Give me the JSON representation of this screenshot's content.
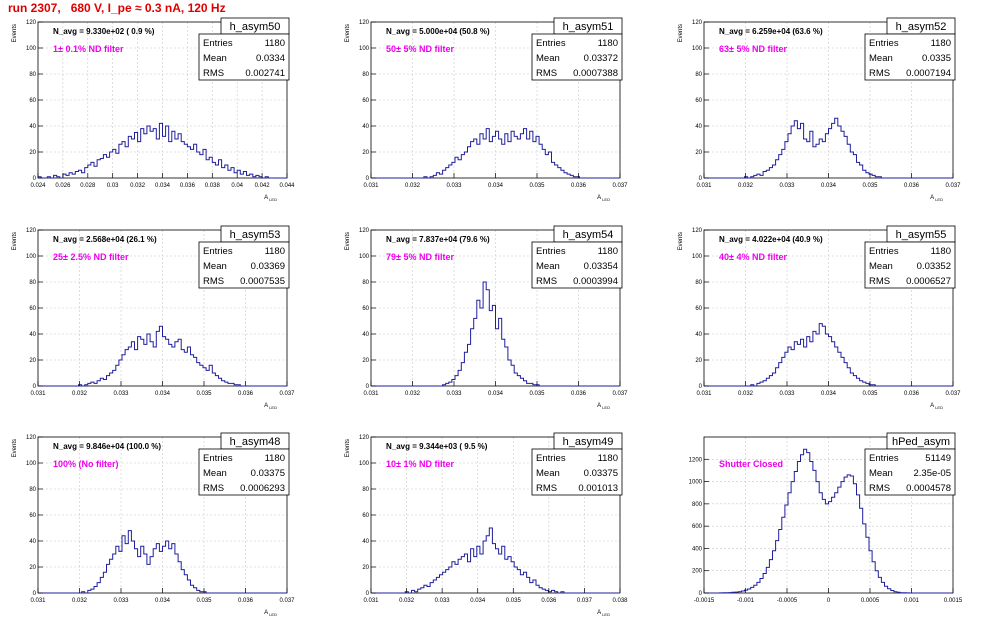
{
  "canvas_title": "run 2307,   680 V, I_pe ≈ 0.3 nA, 120 Hz",
  "colors": {
    "hist": "#1f1f9e",
    "grid": "#c8c8c8",
    "title_red": "#e00000",
    "annot_magenta": "#ee00ee"
  },
  "stats_labels": {
    "entries": "Entries",
    "mean": "Mean",
    "rms": "RMS"
  },
  "chart_data": [
    {
      "type": "histogram",
      "name": "h_asym50",
      "ylabel": "Events",
      "xlabel": "A_LED",
      "nvg": "N_avg = 9.330e+02 ( 0.9 %)",
      "filter": "1± 0.1% ND filter",
      "entries": "1180",
      "mean": "0.0334",
      "rms": "0.002741",
      "xlim": [
        0.024,
        0.044
      ],
      "xticks": [
        0.024,
        0.026,
        0.028,
        0.03,
        0.032,
        0.034,
        0.036,
        0.038,
        0.04,
        0.042,
        0.044
      ],
      "ylim": [
        0,
        120
      ],
      "yticks": [
        0,
        20,
        40,
        60,
        80,
        100,
        120
      ],
      "values": [
        1,
        0,
        0,
        1,
        0,
        2,
        1,
        0,
        3,
        2,
        4,
        3,
        5,
        6,
        4,
        8,
        10,
        12,
        9,
        14,
        15,
        18,
        16,
        20,
        22,
        19,
        26,
        28,
        24,
        32,
        30,
        35,
        28,
        38,
        34,
        40,
        36,
        38,
        30,
        42,
        32,
        40,
        28,
        36,
        30,
        34,
        28,
        26,
        24,
        22,
        26,
        20,
        18,
        22,
        14,
        16,
        12,
        10,
        14,
        8,
        10,
        6,
        8,
        4,
        6,
        3,
        5,
        2,
        3,
        1,
        2,
        1,
        0,
        1,
        0,
        0,
        0,
        0,
        0,
        0
      ]
    },
    {
      "type": "histogram",
      "name": "h_asym51",
      "ylabel": "Events",
      "xlabel": "A_LED",
      "nvg": "N_avg = 5.000e+04 (50.8 %)",
      "filter": "50± 5% ND filter",
      "entries": "1180",
      "mean": "0.03372",
      "rms": "0.0007388",
      "xlim": [
        0.031,
        0.037
      ],
      "xticks": [
        0.031,
        0.032,
        0.033,
        0.034,
        0.035,
        0.036,
        0.037
      ],
      "ylim": [
        0,
        120
      ],
      "yticks": [
        0,
        20,
        40,
        60,
        80,
        100,
        120
      ],
      "values": [
        0,
        0,
        0,
        0,
        0,
        0,
        0,
        0,
        0,
        0,
        0,
        0,
        0,
        0,
        0,
        0,
        0,
        1,
        0,
        1,
        2,
        4,
        3,
        6,
        8,
        10,
        12,
        16,
        14,
        18,
        20,
        24,
        28,
        30,
        26,
        34,
        30,
        38,
        28,
        32,
        36,
        30,
        26,
        34,
        28,
        36,
        32,
        30,
        34,
        38,
        30,
        36,
        28,
        32,
        26,
        22,
        18,
        20,
        12,
        10,
        8,
        6,
        4,
        3,
        2,
        1,
        1,
        0,
        0,
        0,
        0,
        0,
        0,
        0,
        0,
        0,
        0,
        0,
        0,
        0
      ]
    },
    {
      "type": "histogram",
      "name": "h_asym52",
      "ylabel": "Events",
      "xlabel": "A_LED",
      "nvg": "N_avg = 6.259e+04 (63.6 %)",
      "filter": "63± 5% ND filter",
      "entries": "1180",
      "mean": "0.0335",
      "rms": "0.0007194",
      "xlim": [
        0.031,
        0.037
      ],
      "xticks": [
        0.031,
        0.032,
        0.033,
        0.034,
        0.035,
        0.036,
        0.037
      ],
      "ylim": [
        0,
        120
      ],
      "yticks": [
        0,
        20,
        40,
        60,
        80,
        100,
        120
      ],
      "values": [
        0,
        0,
        0,
        0,
        0,
        0,
        0,
        0,
        0,
        0,
        0,
        0,
        0,
        1,
        0,
        1,
        2,
        3,
        2,
        5,
        6,
        8,
        10,
        14,
        18,
        22,
        28,
        34,
        40,
        44,
        38,
        42,
        30,
        28,
        36,
        24,
        26,
        30,
        28,
        34,
        38,
        42,
        46,
        40,
        36,
        32,
        26,
        20,
        18,
        12,
        10,
        6,
        4,
        3,
        2,
        1,
        1,
        0,
        0,
        0,
        0,
        0,
        0,
        0,
        0,
        0,
        0,
        0,
        0,
        0,
        0,
        0,
        0,
        0,
        0,
        0,
        0,
        0,
        0,
        0
      ]
    },
    {
      "type": "histogram",
      "name": "h_asym53",
      "ylabel": "Events",
      "xlabel": "A_LED",
      "nvg": "N_avg = 2.568e+04 (26.1 %)",
      "filter": "25± 2.5% ND filter",
      "entries": "1180",
      "mean": "0.03369",
      "rms": "0.0007535",
      "xlim": [
        0.031,
        0.037
      ],
      "xticks": [
        0.031,
        0.032,
        0.033,
        0.034,
        0.035,
        0.036,
        0.037
      ],
      "ylim": [
        0,
        120
      ],
      "yticks": [
        0,
        20,
        40,
        60,
        80,
        100,
        120
      ],
      "values": [
        0,
        0,
        0,
        0,
        0,
        0,
        0,
        0,
        0,
        0,
        0,
        0,
        0,
        1,
        0,
        1,
        2,
        3,
        2,
        4,
        6,
        5,
        8,
        10,
        12,
        16,
        20,
        24,
        28,
        30,
        34,
        28,
        38,
        36,
        32,
        40,
        34,
        30,
        42,
        46,
        38,
        36,
        32,
        30,
        34,
        36,
        28,
        26,
        30,
        24,
        22,
        18,
        16,
        14,
        12,
        16,
        10,
        8,
        6,
        4,
        3,
        2,
        2,
        1,
        1,
        0,
        0,
        0,
        0,
        0,
        0,
        0,
        0,
        0,
        0,
        0,
        0,
        0,
        0,
        0
      ]
    },
    {
      "type": "histogram",
      "name": "h_asym54",
      "ylabel": "Events",
      "xlabel": "A_LED",
      "nvg": "N_avg = 7.837e+04 (79.6 %)",
      "filter": "79± 5% ND filter",
      "entries": "1180",
      "mean": "0.03354",
      "rms": "0.0003994",
      "xlim": [
        0.031,
        0.037
      ],
      "xticks": [
        0.031,
        0.032,
        0.033,
        0.034,
        0.035,
        0.036,
        0.037
      ],
      "ylim": [
        0,
        120
      ],
      "yticks": [
        0,
        20,
        40,
        60,
        80,
        100,
        120
      ],
      "values": [
        0,
        0,
        0,
        0,
        0,
        0,
        0,
        0,
        0,
        0,
        0,
        0,
        0,
        0,
        0,
        0,
        0,
        0,
        0,
        0,
        0,
        0,
        0,
        1,
        2,
        3,
        5,
        8,
        12,
        18,
        26,
        32,
        44,
        52,
        66,
        60,
        80,
        74,
        58,
        62,
        44,
        52,
        36,
        30,
        20,
        16,
        10,
        8,
        6,
        4,
        2,
        2,
        1,
        1,
        0,
        0,
        0,
        0,
        0,
        0,
        0,
        0,
        0,
        0,
        0,
        0,
        0,
        0,
        0,
        0,
        0,
        0,
        0,
        0,
        0,
        0,
        0,
        0,
        0,
        0
      ]
    },
    {
      "type": "histogram",
      "name": "h_asym55",
      "ylabel": "Events",
      "xlabel": "A_LED",
      "nvg": "N_avg = 4.022e+04 (40.9 %)",
      "filter": "40± 4% ND filter",
      "entries": "1180",
      "mean": "0.03352",
      "rms": "0.0006527",
      "xlim": [
        0.031,
        0.037
      ],
      "xticks": [
        0.031,
        0.032,
        0.033,
        0.034,
        0.035,
        0.036,
        0.037
      ],
      "ylim": [
        0,
        120
      ],
      "yticks": [
        0,
        20,
        40,
        60,
        80,
        100,
        120
      ],
      "values": [
        0,
        0,
        0,
        0,
        0,
        0,
        0,
        0,
        0,
        0,
        0,
        0,
        0,
        0,
        0,
        1,
        0,
        2,
        3,
        4,
        6,
        8,
        10,
        14,
        18,
        22,
        26,
        30,
        28,
        34,
        32,
        36,
        30,
        38,
        34,
        42,
        40,
        48,
        46,
        40,
        38,
        34,
        30,
        26,
        22,
        18,
        14,
        10,
        8,
        6,
        4,
        3,
        2,
        1,
        1,
        0,
        0,
        0,
        0,
        0,
        0,
        0,
        0,
        0,
        0,
        0,
        0,
        0,
        0,
        0,
        0,
        0,
        0,
        0,
        0,
        0,
        0,
        0,
        0,
        0
      ]
    },
    {
      "type": "histogram",
      "name": "h_asym48",
      "ylabel": "Events",
      "xlabel": "A_LED",
      "nvg": "N_avg = 9.846e+04 (100.0 %)",
      "filter": "100% (No filter)",
      "entries": "1180",
      "mean": "0.03375",
      "rms": "0.0006293",
      "xlim": [
        0.031,
        0.037
      ],
      "xticks": [
        0.031,
        0.032,
        0.033,
        0.034,
        0.035,
        0.036,
        0.037
      ],
      "ylim": [
        0,
        120
      ],
      "yticks": [
        0,
        20,
        40,
        60,
        80,
        100,
        120
      ],
      "values": [
        0,
        0,
        0,
        0,
        0,
        0,
        0,
        0,
        0,
        0,
        0,
        0,
        0,
        0,
        1,
        0,
        2,
        3,
        5,
        8,
        12,
        16,
        22,
        26,
        30,
        36,
        32,
        44,
        38,
        48,
        40,
        34,
        28,
        36,
        30,
        22,
        28,
        34,
        38,
        32,
        36,
        40,
        34,
        38,
        30,
        24,
        18,
        14,
        10,
        6,
        4,
        2,
        1,
        1,
        0,
        0,
        0,
        0,
        0,
        0,
        0,
        0,
        0,
        0,
        0,
        0,
        0,
        0,
        0,
        0,
        0,
        0,
        0,
        0,
        0,
        0,
        0,
        0,
        0,
        0
      ]
    },
    {
      "type": "histogram",
      "name": "h_asym49",
      "ylabel": "Events",
      "xlabel": "A_LED",
      "nvg": "N_avg = 9.344e+03 ( 9.5 %)",
      "filter": "10± 1% ND filter",
      "entries": "1180",
      "mean": "0.03375",
      "rms": "0.001013",
      "xlim": [
        0.031,
        0.038
      ],
      "xticks": [
        0.031,
        0.032,
        0.033,
        0.034,
        0.035,
        0.036,
        0.037,
        0.038
      ],
      "ylim": [
        0,
        120
      ],
      "yticks": [
        0,
        20,
        40,
        60,
        80,
        100,
        120
      ],
      "values": [
        0,
        0,
        0,
        0,
        0,
        0,
        0,
        0,
        0,
        0,
        0,
        1,
        0,
        2,
        1,
        3,
        4,
        6,
        5,
        8,
        10,
        12,
        14,
        16,
        18,
        20,
        24,
        22,
        26,
        28,
        30,
        24,
        34,
        28,
        36,
        30,
        40,
        44,
        50,
        38,
        34,
        30,
        36,
        26,
        28,
        24,
        20,
        18,
        14,
        16,
        12,
        8,
        10,
        6,
        4,
        3,
        2,
        1,
        2,
        1,
        0,
        1,
        0,
        0,
        0,
        0,
        0,
        0,
        0,
        0,
        0,
        0,
        0,
        0,
        0,
        0,
        0,
        0,
        0,
        0
      ]
    },
    {
      "type": "histogram",
      "name": "hPed_asym",
      "ylabel": "",
      "xlabel": "",
      "nvg": "",
      "filter": "Shutter Closed",
      "entries": "51149",
      "mean": "2.35e-05",
      "rms": "0.0004578",
      "xlim": [
        -0.0015,
        0.0015
      ],
      "xticks": [
        -0.0015,
        -0.001,
        -0.0005,
        0,
        0.0005,
        0.001,
        0.0015
      ],
      "ylim": [
        0,
        1400
      ],
      "yticks": [
        0,
        200,
        400,
        600,
        800,
        1000,
        1200
      ],
      "values": [
        0,
        0,
        0,
        0,
        0,
        1,
        2,
        3,
        4,
        6,
        8,
        12,
        18,
        26,
        36,
        50,
        70,
        95,
        130,
        175,
        230,
        300,
        380,
        470,
        570,
        680,
        790,
        900,
        1000,
        1090,
        1180,
        1240,
        1290,
        1260,
        1180,
        1100,
        1000,
        900,
        840,
        800,
        820,
        860,
        900,
        950,
        1000,
        1040,
        1060,
        1050,
        980,
        880,
        760,
        620,
        500,
        380,
        280,
        200,
        140,
        95,
        60,
        38,
        22,
        12,
        6,
        3,
        2,
        1,
        0,
        0,
        0,
        0,
        0,
        0,
        0,
        0,
        0,
        0,
        0,
        0,
        0,
        0
      ]
    }
  ]
}
